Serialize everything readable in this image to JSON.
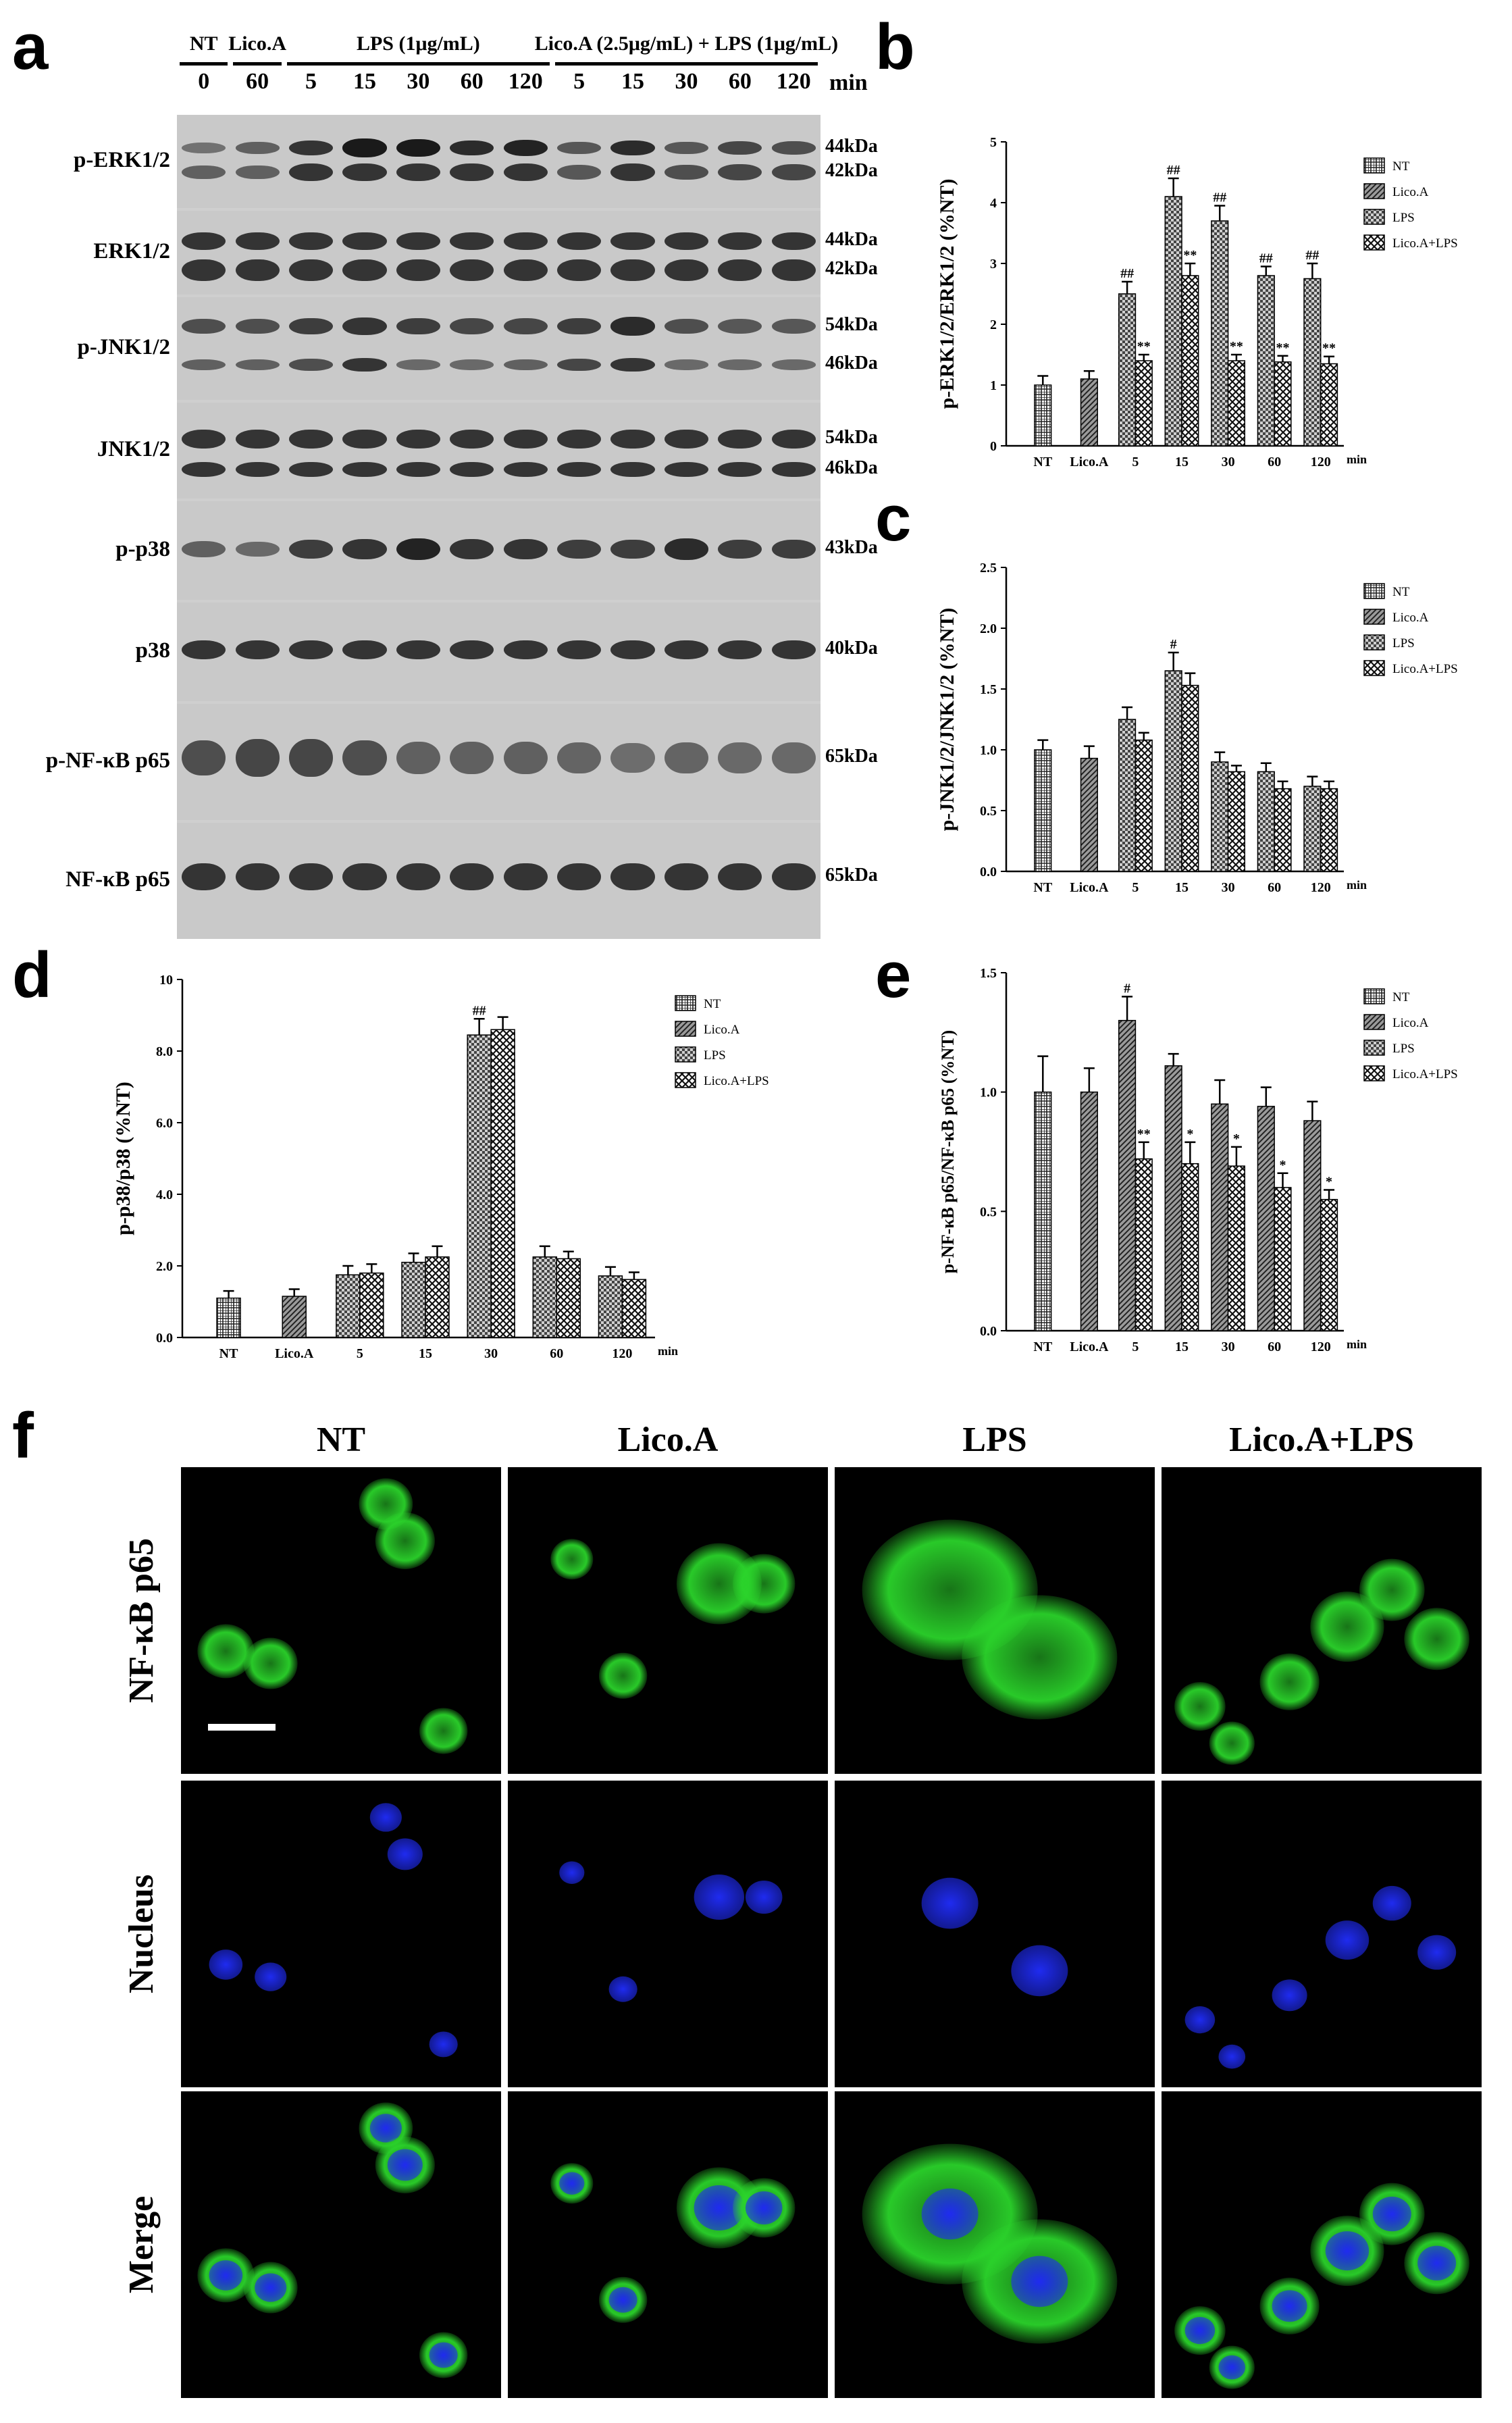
{
  "panels": {
    "a": "a",
    "b": "b",
    "c": "c",
    "d": "d",
    "e": "e",
    "f": "f"
  },
  "blot": {
    "groups": [
      {
        "label": "NT",
        "lanes": [
          "0"
        ]
      },
      {
        "label": "Lico.A",
        "lanes": [
          "60"
        ]
      },
      {
        "label": "LPS (1μg/mL)",
        "lanes": [
          "5",
          "15",
          "30",
          "60",
          "120"
        ]
      },
      {
        "label": "Lico.A (2.5μg/mL) + LPS (1μg/mL)",
        "lanes": [
          "5",
          "15",
          "30",
          "60",
          "120"
        ]
      }
    ],
    "unit": "min",
    "rows": [
      {
        "label": "p-ERK1/2",
        "kda": [
          "44kDa",
          "42kDa"
        ]
      },
      {
        "label": "ERK1/2",
        "kda": [
          "44kDa",
          "42kDa"
        ]
      },
      {
        "label": "p-JNK1/2",
        "kda": [
          "54kDa",
          "46kDa"
        ]
      },
      {
        "label": "JNK1/2",
        "kda": [
          "54kDa",
          "46kDa"
        ]
      },
      {
        "label": "p-p38",
        "kda": [
          "43kDa"
        ]
      },
      {
        "label": "p38",
        "kda": [
          "40kDa"
        ]
      },
      {
        "label": "p-NF-κB p65",
        "kda": [
          "65kDa"
        ]
      },
      {
        "label": "NF-κB p65",
        "kda": [
          "65kDa"
        ]
      }
    ]
  },
  "chart_data": [
    {
      "id": "b",
      "type": "bar",
      "ylabel": "p-ERK1/2/ERK1/2 (%NT)",
      "ylim": [
        0,
        5
      ],
      "yticks": [
        "0",
        "1",
        "2",
        "3",
        "4",
        "5"
      ],
      "categories": [
        "NT",
        "Lico.A",
        "5",
        "15",
        "30",
        "60",
        "120"
      ],
      "unit": "min",
      "legend": [
        "NT",
        "Lico.A",
        "LPS",
        "Lico.A+LPS"
      ],
      "bars": [
        {
          "cat": 0,
          "series": 0,
          "value": 1.0,
          "err": 0.15,
          "mark": ""
        },
        {
          "cat": 1,
          "series": 1,
          "value": 1.1,
          "err": 0.13,
          "mark": ""
        },
        {
          "cat": 2,
          "series": 2,
          "value": 2.5,
          "err": 0.2,
          "mark": "##"
        },
        {
          "cat": 2,
          "series": 3,
          "value": 1.4,
          "err": 0.1,
          "mark": "**"
        },
        {
          "cat": 3,
          "series": 2,
          "value": 4.1,
          "err": 0.3,
          "mark": "##"
        },
        {
          "cat": 3,
          "series": 3,
          "value": 2.8,
          "err": 0.2,
          "mark": "**"
        },
        {
          "cat": 4,
          "series": 2,
          "value": 3.7,
          "err": 0.25,
          "mark": "##"
        },
        {
          "cat": 4,
          "series": 3,
          "value": 1.4,
          "err": 0.1,
          "mark": "**"
        },
        {
          "cat": 5,
          "series": 2,
          "value": 2.8,
          "err": 0.15,
          "mark": "##"
        },
        {
          "cat": 5,
          "series": 3,
          "value": 1.38,
          "err": 0.1,
          "mark": "**"
        },
        {
          "cat": 6,
          "series": 2,
          "value": 2.75,
          "err": 0.25,
          "mark": "##"
        },
        {
          "cat": 6,
          "series": 3,
          "value": 1.35,
          "err": 0.12,
          "mark": "**"
        }
      ]
    },
    {
      "id": "c",
      "type": "bar",
      "ylabel": "p-JNK1/2/JNK1/2 (%NT)",
      "ylim": [
        0,
        2.5
      ],
      "yticks": [
        "0.0",
        "0.5",
        "1.0",
        "1.5",
        "2.0",
        "2.5"
      ],
      "categories": [
        "NT",
        "Lico.A",
        "5",
        "15",
        "30",
        "60",
        "120"
      ],
      "unit": "min",
      "legend": [
        "NT",
        "Lico.A",
        "LPS",
        "Lico.A+LPS"
      ],
      "bars": [
        {
          "cat": 0,
          "series": 0,
          "value": 1.0,
          "err": 0.08,
          "mark": ""
        },
        {
          "cat": 1,
          "series": 1,
          "value": 0.93,
          "err": 0.1,
          "mark": ""
        },
        {
          "cat": 2,
          "series": 2,
          "value": 1.25,
          "err": 0.1,
          "mark": ""
        },
        {
          "cat": 2,
          "series": 3,
          "value": 1.08,
          "err": 0.06,
          "mark": ""
        },
        {
          "cat": 3,
          "series": 2,
          "value": 1.65,
          "err": 0.15,
          "mark": "#"
        },
        {
          "cat": 3,
          "series": 3,
          "value": 1.53,
          "err": 0.1,
          "mark": ""
        },
        {
          "cat": 4,
          "series": 2,
          "value": 0.9,
          "err": 0.08,
          "mark": ""
        },
        {
          "cat": 4,
          "series": 3,
          "value": 0.82,
          "err": 0.05,
          "mark": ""
        },
        {
          "cat": 5,
          "series": 2,
          "value": 0.82,
          "err": 0.07,
          "mark": ""
        },
        {
          "cat": 5,
          "series": 3,
          "value": 0.68,
          "err": 0.06,
          "mark": ""
        },
        {
          "cat": 6,
          "series": 2,
          "value": 0.7,
          "err": 0.08,
          "mark": ""
        },
        {
          "cat": 6,
          "series": 3,
          "value": 0.68,
          "err": 0.06,
          "mark": ""
        }
      ]
    },
    {
      "id": "d",
      "type": "bar",
      "ylabel": "p-p38/p38 (%NT)",
      "ylim": [
        0,
        10
      ],
      "yticks": [
        "0.0",
        "2.0",
        "4.0",
        "6.0",
        "8.0",
        "10"
      ],
      "categories": [
        "NT",
        "Lico.A",
        "5",
        "15",
        "30",
        "60",
        "120"
      ],
      "unit": "min",
      "legend": [
        "NT",
        "Lico.A",
        "LPS",
        "Lico.A+LPS"
      ],
      "bars": [
        {
          "cat": 0,
          "series": 0,
          "value": 1.1,
          "err": 0.2,
          "mark": ""
        },
        {
          "cat": 1,
          "series": 1,
          "value": 1.15,
          "err": 0.2,
          "mark": ""
        },
        {
          "cat": 2,
          "series": 2,
          "value": 1.75,
          "err": 0.25,
          "mark": ""
        },
        {
          "cat": 2,
          "series": 3,
          "value": 1.8,
          "err": 0.25,
          "mark": ""
        },
        {
          "cat": 3,
          "series": 2,
          "value": 2.1,
          "err": 0.25,
          "mark": ""
        },
        {
          "cat": 3,
          "series": 3,
          "value": 2.25,
          "err": 0.3,
          "mark": ""
        },
        {
          "cat": 4,
          "series": 2,
          "value": 8.45,
          "err": 0.45,
          "mark": "##"
        },
        {
          "cat": 4,
          "series": 3,
          "value": 8.6,
          "err": 0.35,
          "mark": ""
        },
        {
          "cat": 5,
          "series": 2,
          "value": 2.25,
          "err": 0.3,
          "mark": ""
        },
        {
          "cat": 5,
          "series": 3,
          "value": 2.2,
          "err": 0.2,
          "mark": ""
        },
        {
          "cat": 6,
          "series": 2,
          "value": 1.72,
          "err": 0.25,
          "mark": ""
        },
        {
          "cat": 6,
          "series": 3,
          "value": 1.62,
          "err": 0.2,
          "mark": ""
        }
      ]
    },
    {
      "id": "e",
      "type": "bar",
      "ylabel": "p-NF-κB p65/NF-κB p65 (%NT)",
      "ylim": [
        0,
        1.5
      ],
      "yticks": [
        "0.0",
        "0.5",
        "1.0",
        "1.5"
      ],
      "categories": [
        "NT",
        "Lico.A",
        "5",
        "15",
        "30",
        "60",
        "120"
      ],
      "unit": "min",
      "legend": [
        "NT",
        "Lico.A",
        "LPS",
        "Lico.A+LPS"
      ],
      "bars": [
        {
          "cat": 0,
          "series": 0,
          "value": 1.0,
          "err": 0.15,
          "mark": ""
        },
        {
          "cat": 1,
          "series": 1,
          "value": 1.0,
          "err": 0.1,
          "mark": ""
        },
        {
          "cat": 2,
          "series": 1,
          "value": 1.3,
          "err": 0.1,
          "mark": "#"
        },
        {
          "cat": 2,
          "series": 3,
          "value": 0.72,
          "err": 0.07,
          "mark": "**"
        },
        {
          "cat": 3,
          "series": 1,
          "value": 1.11,
          "err": 0.05,
          "mark": ""
        },
        {
          "cat": 3,
          "series": 3,
          "value": 0.7,
          "err": 0.09,
          "mark": "*"
        },
        {
          "cat": 4,
          "series": 1,
          "value": 0.95,
          "err": 0.1,
          "mark": ""
        },
        {
          "cat": 4,
          "series": 3,
          "value": 0.69,
          "err": 0.08,
          "mark": "*"
        },
        {
          "cat": 5,
          "series": 1,
          "value": 0.94,
          "err": 0.08,
          "mark": ""
        },
        {
          "cat": 5,
          "series": 3,
          "value": 0.6,
          "err": 0.06,
          "mark": "*"
        },
        {
          "cat": 6,
          "series": 1,
          "value": 0.88,
          "err": 0.08,
          "mark": ""
        },
        {
          "cat": 6,
          "series": 3,
          "value": 0.55,
          "err": 0.04,
          "mark": "*"
        }
      ]
    }
  ],
  "micrograph": {
    "columns": [
      "NT",
      "Lico.A",
      "LPS",
      "Lico.A+LPS"
    ],
    "rows": [
      "NF-κB p65",
      "Nucleus",
      "Merge"
    ],
    "colors": {
      "p65": "#2bd42b",
      "nucleus": "#1f2bf0"
    }
  }
}
